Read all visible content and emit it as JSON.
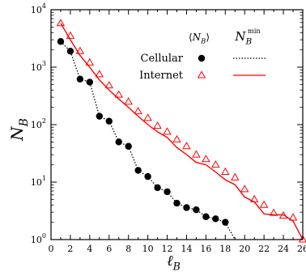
{
  "chart_data": {
    "type": "scatter",
    "x": [
      1,
      2,
      3,
      4,
      5,
      6,
      7,
      8,
      9,
      10,
      11,
      12,
      13,
      14,
      15,
      16,
      17,
      18,
      19,
      20,
      21,
      22,
      23,
      24,
      25,
      26
    ],
    "series": [
      {
        "name": "Cellular",
        "kind": "points",
        "marker": "filled-circle",
        "color": "#000000",
        "x": [
          1,
          2,
          3,
          4,
          5,
          6,
          7,
          8,
          9,
          10,
          11,
          12,
          13,
          14,
          15,
          16,
          17,
          18
        ],
        "values": [
          2800,
          1900,
          620,
          550,
          140,
          115,
          50,
          42,
          16,
          12.5,
          8,
          6.8,
          4.3,
          3.6,
          3.3,
          2.5,
          2.3,
          2.0
        ]
      },
      {
        "name": "Cellular",
        "kind": "line",
        "style": "dotted",
        "color": "#000000",
        "x": [
          1,
          2,
          3,
          4,
          5,
          6,
          7,
          8,
          9,
          10,
          11,
          12,
          13,
          14,
          15,
          16,
          17,
          18,
          19
        ],
        "values": [
          2800,
          1900,
          620,
          550,
          140,
          115,
          50,
          42,
          16,
          12.5,
          8,
          6.8,
          4.3,
          3.6,
          3.3,
          2.5,
          2.3,
          2.0,
          1.0
        ]
      },
      {
        "name": "Internet",
        "kind": "points",
        "marker": "open-triangle",
        "color": "#ff0000",
        "x": [
          1,
          2,
          3,
          4,
          5,
          6,
          7,
          8,
          9,
          10,
          11,
          12,
          13,
          14,
          15,
          16,
          17,
          18,
          19,
          20,
          21,
          22,
          23,
          24,
          25,
          26
        ],
        "values": [
          5800,
          3500,
          1900,
          1200,
          750,
          480,
          330,
          250,
          170,
          130,
          95,
          75,
          55,
          42,
          30,
          25,
          20,
          15,
          12,
          7.5,
          5,
          4,
          2.9,
          2.6,
          2.4,
          1.0
        ]
      },
      {
        "name": "Internet",
        "kind": "line",
        "style": "solid",
        "color": "#ff0000",
        "x": [
          1,
          2,
          3,
          4,
          5,
          6,
          7,
          8,
          9,
          10,
          11,
          12,
          13,
          14,
          15,
          16,
          17,
          18,
          19,
          20,
          21,
          22,
          23,
          24,
          25,
          26
        ],
        "values": [
          5800,
          3000,
          1600,
          1000,
          600,
          400,
          280,
          200,
          140,
          100,
          75,
          60,
          40,
          30,
          22,
          20,
          15,
          11,
          9,
          5.5,
          4.5,
          2.8,
          2.7,
          2.7,
          2.1,
          1.0
        ]
      }
    ],
    "xlabel": "ℓ_B",
    "ylabel": "N_B",
    "xlim": [
      0,
      26
    ],
    "ylim": [
      1,
      10000
    ],
    "yscale": "log",
    "x_ticks": [
      0,
      2,
      4,
      6,
      8,
      10,
      12,
      14,
      16,
      18,
      20,
      22,
      24,
      26
    ],
    "y_ticks": [
      1,
      10,
      100,
      1000,
      10000
    ],
    "y_tick_exponents": [
      0,
      1,
      2,
      3,
      4
    ],
    "grid": false,
    "legend": {
      "placement": "top-right",
      "header_mean": "⟨N_B⟩",
      "header_min": "N_B^min",
      "rows": [
        "Cellular",
        "Internet"
      ]
    }
  }
}
